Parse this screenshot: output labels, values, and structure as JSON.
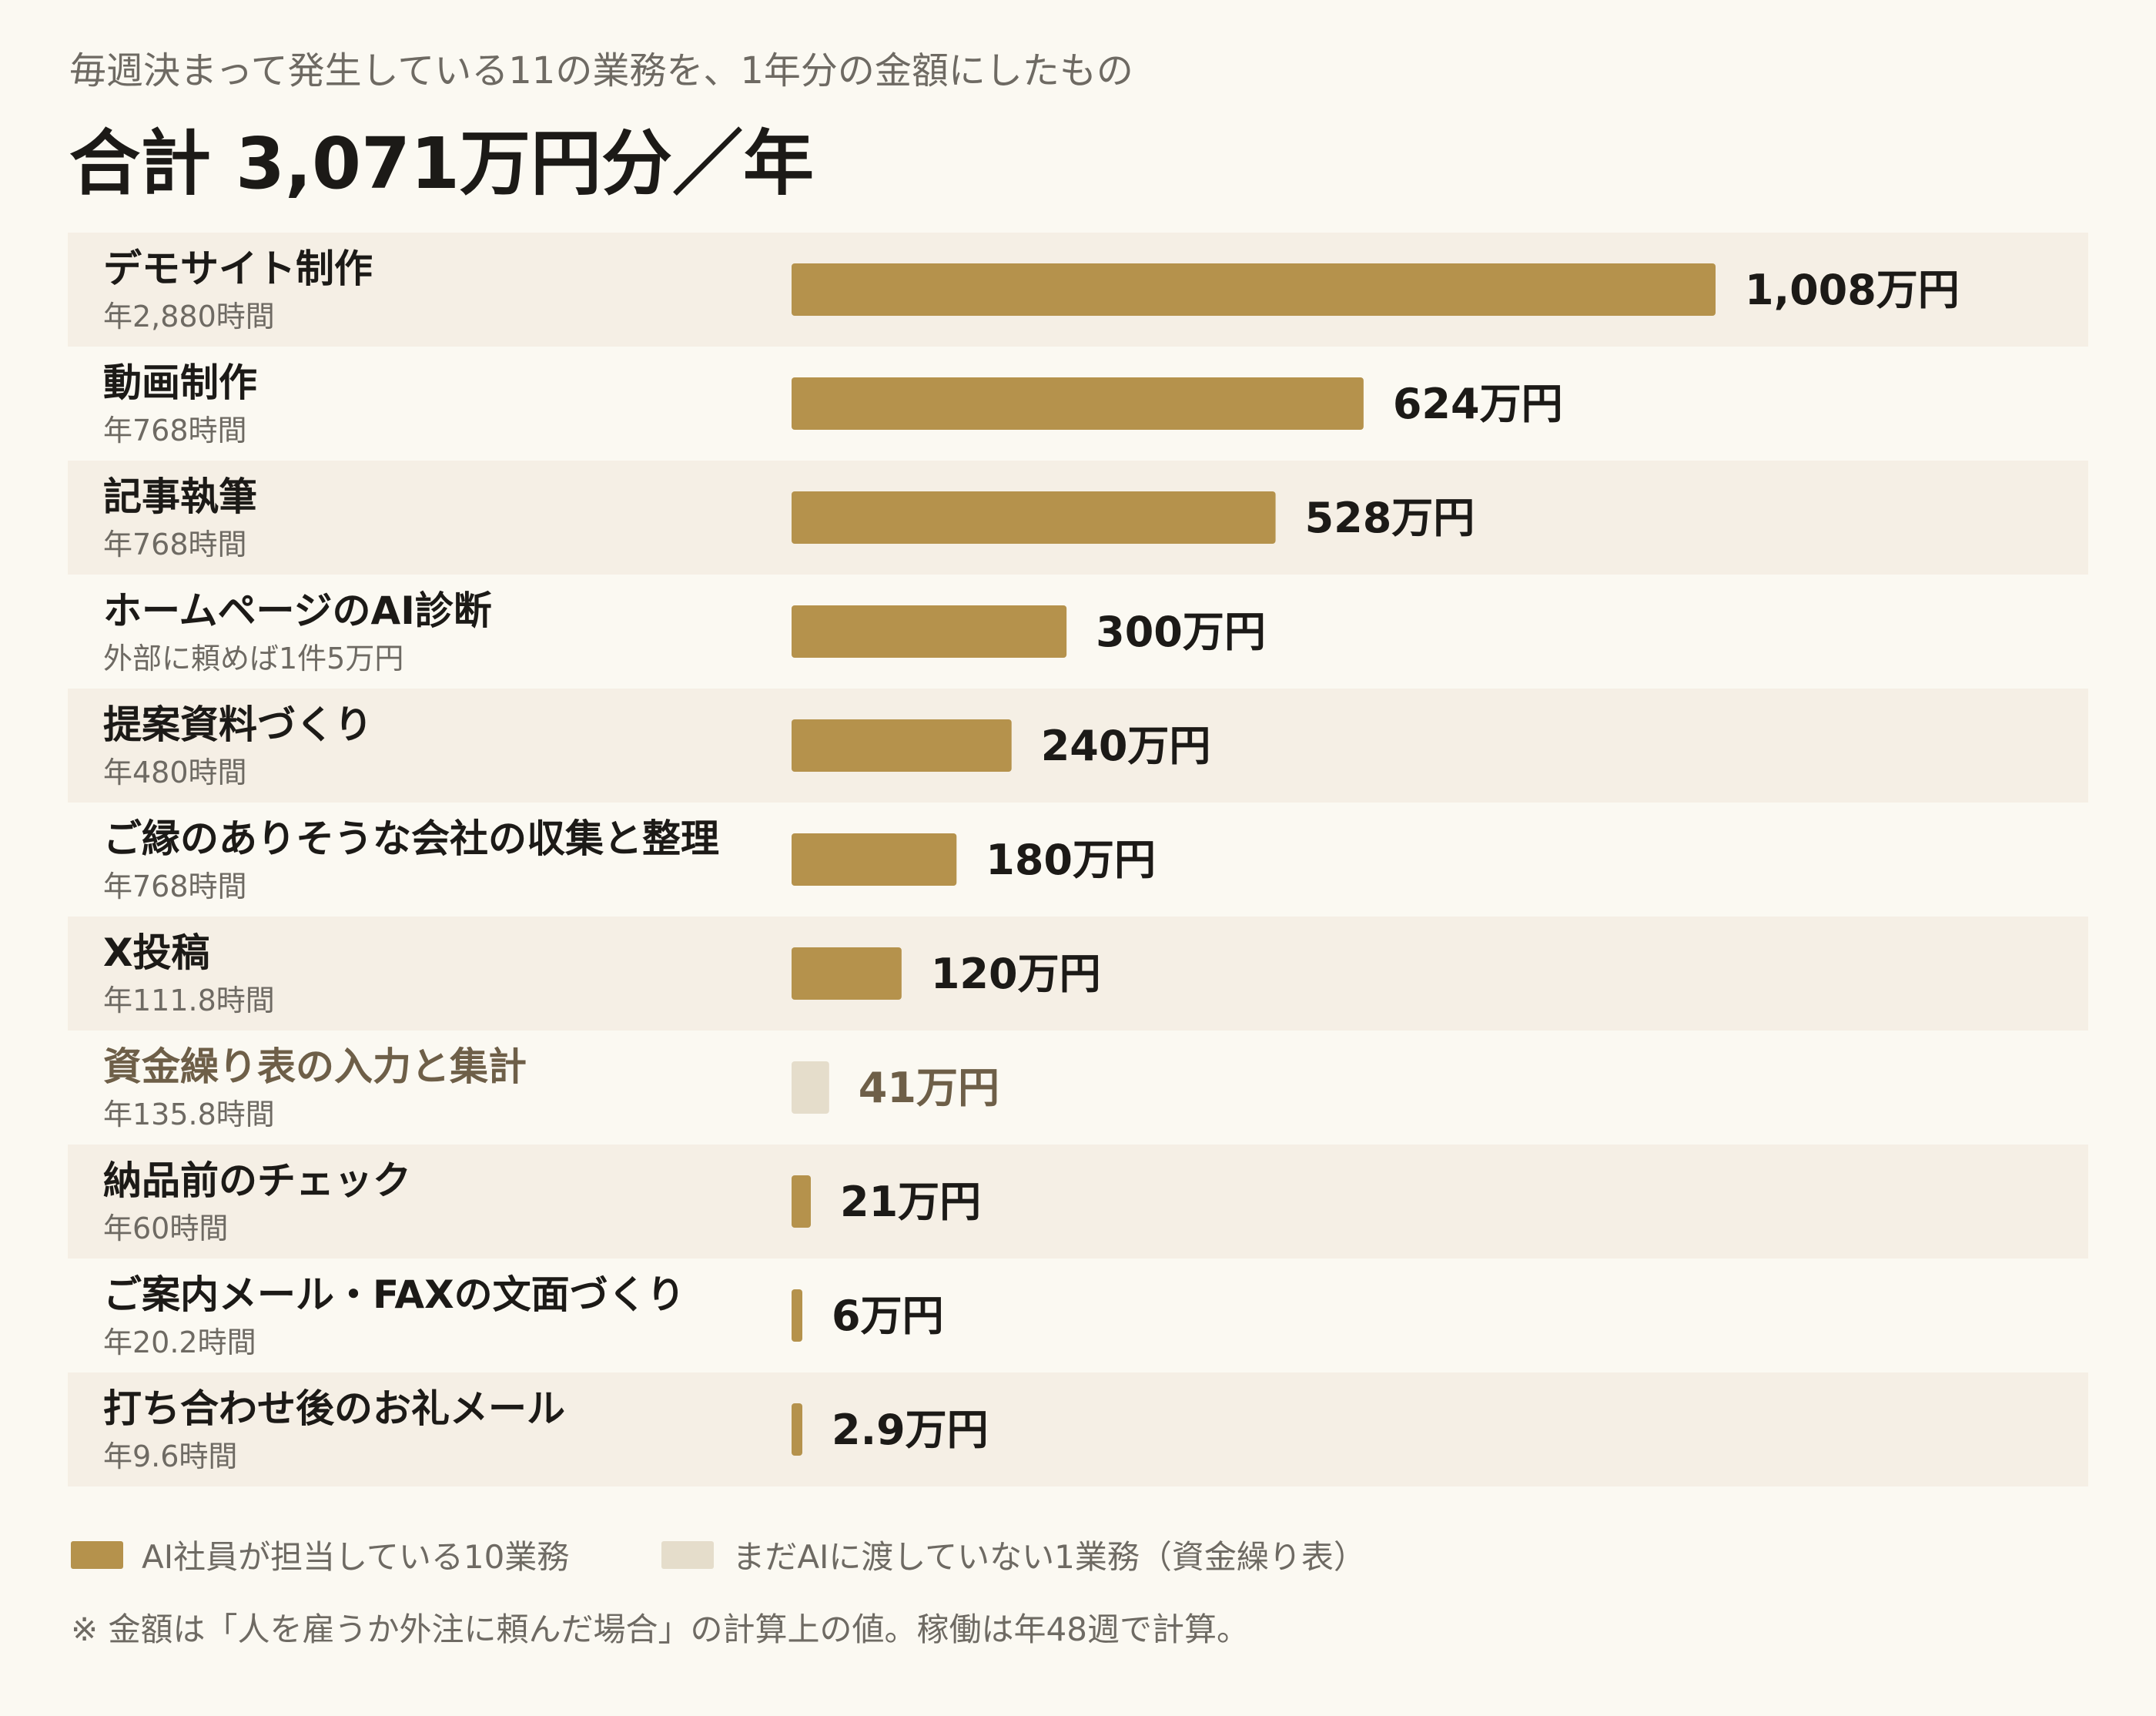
{
  "header": {
    "subtitle": "毎週決まって発生している11の業務を、1年分の金額にしたもの",
    "title": "合計 3,071万円分／年"
  },
  "colors": {
    "done": "#b5924c",
    "todo": "#e5ddcb",
    "row_band": "#f5efe5",
    "label_dark": "#1c1a17",
    "label_muted": "#6e5f48",
    "sub_text": "#6e6a63"
  },
  "legend": {
    "done_label": "AI社員が担当している10業務",
    "todo_label": "まだAIに渡していない1業務（資金繰り表）"
  },
  "note": "※ 金額は「人を雇うか外注に頼んだ場合」の計算上の値。稼働は年48週で計算。",
  "chart_data": {
    "type": "bar",
    "orientation": "horizontal",
    "unit": "万円",
    "xlim": [
      0,
      1008
    ],
    "grid": false,
    "bars": [
      {
        "category": "デモサイト制作",
        "detail": "年2,880時間",
        "value": 1008,
        "value_label": "1,008万円",
        "status": "done"
      },
      {
        "category": "動画制作",
        "detail": "年768時間",
        "value": 624,
        "value_label": "624万円",
        "status": "done"
      },
      {
        "category": "記事執筆",
        "detail": "年768時間",
        "value": 528,
        "value_label": "528万円",
        "status": "done"
      },
      {
        "category": "ホームページのAI診断",
        "detail": "外部に頼めば1件5万円",
        "value": 300,
        "value_label": "300万円",
        "status": "done"
      },
      {
        "category": "提案資料づくり",
        "detail": "年480時間",
        "value": 240,
        "value_label": "240万円",
        "status": "done"
      },
      {
        "category": "ご縁のありそうな会社の収集と整理",
        "detail": "年768時間",
        "value": 180,
        "value_label": "180万円",
        "status": "done"
      },
      {
        "category": "X投稿",
        "detail": "年111.8時間",
        "value": 120,
        "value_label": "120万円",
        "status": "done"
      },
      {
        "category": "資金繰り表の入力と集計",
        "detail": "年135.8時間",
        "value": 41,
        "value_label": "41万円",
        "status": "todo"
      },
      {
        "category": "納品前のチェック",
        "detail": "年60時間",
        "value": 21,
        "value_label": "21万円",
        "status": "done"
      },
      {
        "category": "ご案内メール・FAXの文面づくり",
        "detail": "年20.2時間",
        "value": 6,
        "value_label": "6万円",
        "status": "done"
      },
      {
        "category": "打ち合わせ後のお礼メール",
        "detail": "年9.6時間",
        "value": 2.9,
        "value_label": "2.9万円",
        "status": "done"
      }
    ]
  }
}
